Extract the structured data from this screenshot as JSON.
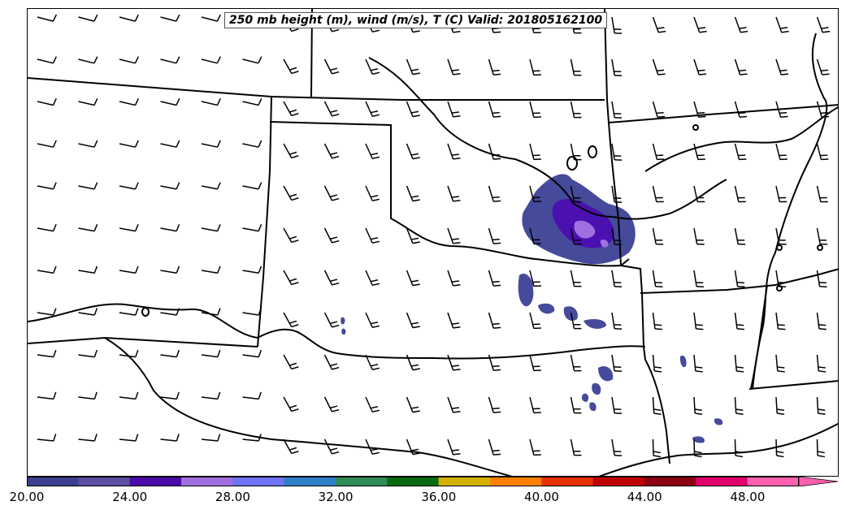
{
  "title": "250 mb height (m), wind (m/s), T (C) Valid: 201805162100",
  "colorbar": {
    "tick_labels": [
      "20.00",
      "24.00",
      "28.00",
      "32.00",
      "36.00",
      "40.00",
      "44.00",
      "48.00"
    ],
    "colors": [
      "#3a3f8f",
      "#5a4fa0",
      "#4b0aa8",
      "#a070e0",
      "#6f73f5",
      "#2f7fc8",
      "#2e8b57",
      "#0a6a14",
      "#d4b000",
      "#ff8000",
      "#e83000",
      "#c00000",
      "#8b0010",
      "#e0006a",
      "#ff60b0"
    ]
  },
  "map": {
    "wind_barb_icon": "wind-barb",
    "shading_colors": {
      "light": "#454a9a",
      "mid": "#4b10b0",
      "high": "#a070e0"
    }
  }
}
